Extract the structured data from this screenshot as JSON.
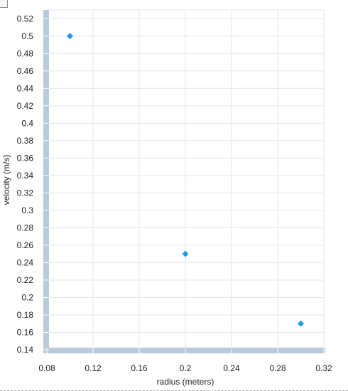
{
  "chart_data": {
    "type": "scatter",
    "title": "",
    "xlabel": "radius (meters)",
    "ylabel": "velocity (m/s)",
    "xlim": [
      0.08,
      0.32
    ],
    "ylim": [
      0.14,
      0.53
    ],
    "xticks": [
      0.08,
      0.12,
      0.16,
      0.2,
      0.24,
      0.28,
      0.32
    ],
    "yticks": [
      0.14,
      0.16,
      0.18,
      0.2,
      0.22,
      0.24,
      0.26,
      0.28,
      0.3,
      0.32,
      0.34,
      0.36,
      0.38,
      0.4,
      0.42,
      0.44,
      0.46,
      0.48,
      0.5,
      0.52
    ],
    "grid": true,
    "marker": "diamond",
    "series": [
      {
        "x": [
          0.1,
          0.2,
          0.3
        ],
        "y": [
          0.5,
          0.25,
          0.17
        ]
      }
    ],
    "colors": {
      "point": "#1a9be8",
      "axis": "#b9cbdb",
      "grid": "#e6e6e6"
    }
  }
}
